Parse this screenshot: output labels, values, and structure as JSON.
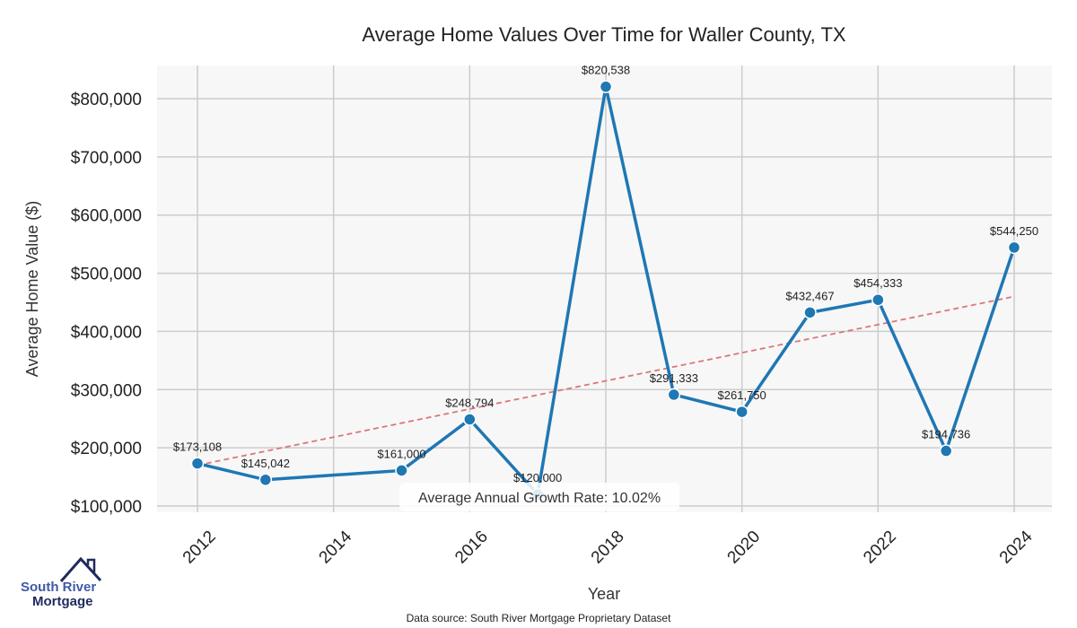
{
  "chart_data": {
    "type": "line",
    "title": "Average Home Values Over Time for Waller County, TX",
    "xlabel": "Year",
    "ylabel": "Average Home Value ($)",
    "xlim": [
      2011.4,
      2024.55
    ],
    "ylim": [
      89000,
      857000
    ],
    "xticks": [
      "2012",
      "2014",
      "2016",
      "2018",
      "2020",
      "2022",
      "2024"
    ],
    "yticks": [
      "$100,000",
      "$200,000",
      "$300,000",
      "$400,000",
      "$500,000",
      "$600,000",
      "$700,000",
      "$800,000"
    ],
    "grid": true,
    "series": [
      {
        "name": "Average Home Value",
        "color": "#1f77b4",
        "x": [
          2012,
          2013,
          2015,
          2016,
          2017,
          2018,
          2019,
          2020,
          2021,
          2022,
          2023,
          2024
        ],
        "values": [
          173108,
          145042,
          161000,
          248794,
          120000,
          820538,
          291333,
          261750,
          432467,
          454333,
          194736,
          544250
        ],
        "labels": [
          "$173,108",
          "$145,042",
          "$161,000",
          "$248,794",
          "$120,000",
          "$820,538",
          "$291,333",
          "$261,750",
          "$432,467",
          "$454,333",
          "$194,736",
          "$544,250"
        ]
      }
    ],
    "trend": {
      "name": "trend",
      "color": "#d9777a",
      "x": [
        2012,
        2024
      ],
      "values": [
        170000,
        460000
      ]
    },
    "annotation": "Average Annual Growth Rate: 10.02%",
    "source": "Data source: South River Mortgage Proprietary Dataset"
  },
  "logo": {
    "line1": "South River",
    "line2": "Mortgage"
  }
}
